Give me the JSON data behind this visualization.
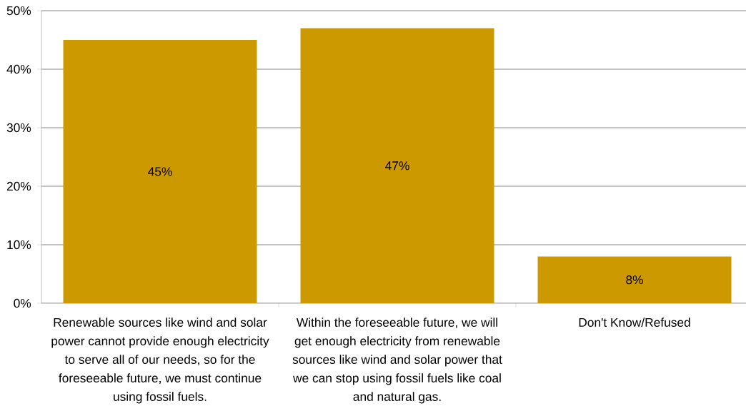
{
  "chart_data": {
    "type": "bar",
    "categories": [
      "Renewable sources like wind and solar power cannot provide enough electricity to serve all of our needs, so for the foreseeable future, we must continue using fossil fuels.",
      "Within the foreseeable future, we will get enough electricity from renewable sources like wind and solar power that we can stop using fossil fuels like coal and natural gas.",
      "Don't Know/Refused"
    ],
    "values": [
      45,
      47,
      8
    ],
    "value_labels": [
      "45%",
      "47%",
      "8%"
    ],
    "color": "#cc9900",
    "ylim": [
      0,
      50
    ],
    "yticks": [
      {
        "value": 0,
        "label": "0%"
      },
      {
        "value": 10,
        "label": "10%"
      },
      {
        "value": 20,
        "label": "20%"
      },
      {
        "value": 30,
        "label": "30%"
      },
      {
        "value": 40,
        "label": "40%"
      },
      {
        "value": 50,
        "label": "50%"
      }
    ],
    "grid": "y"
  }
}
